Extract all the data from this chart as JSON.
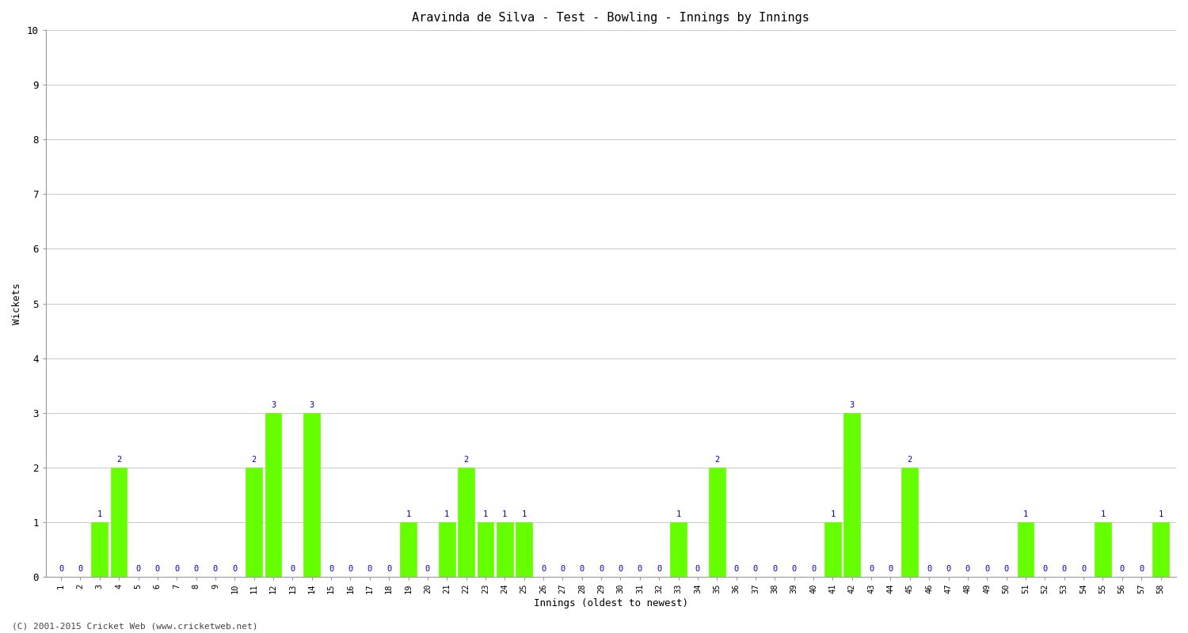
{
  "title": "Aravinda de Silva - Test - Bowling - Innings by Innings",
  "xlabel": "Innings (oldest to newest)",
  "ylabel": "Wickets",
  "background_color": "#ffffff",
  "bar_color": "#66ff00",
  "label_color": "#0000cc",
  "ylim": [
    0,
    10
  ],
  "yticks": [
    0,
    1,
    2,
    3,
    4,
    5,
    6,
    7,
    8,
    9,
    10
  ],
  "innings": [
    1,
    2,
    3,
    4,
    5,
    6,
    7,
    8,
    9,
    10,
    11,
    12,
    13,
    14,
    15,
    16,
    17,
    18,
    19,
    20,
    21,
    22,
    23,
    24,
    25,
    26,
    27,
    28,
    29,
    30,
    31,
    32,
    33,
    34,
    35,
    36,
    37,
    38,
    39,
    40,
    41,
    42,
    43,
    44,
    45,
    46,
    47,
    48,
    49,
    50,
    51,
    52,
    53,
    54,
    55,
    56,
    57,
    58
  ],
  "wickets": [
    0,
    0,
    1,
    2,
    0,
    0,
    0,
    0,
    0,
    0,
    2,
    3,
    0,
    3,
    0,
    0,
    0,
    0,
    1,
    0,
    1,
    2,
    1,
    1,
    1,
    0,
    0,
    0,
    0,
    0,
    0,
    0,
    1,
    0,
    2,
    0,
    0,
    0,
    0,
    0,
    1,
    3,
    0,
    0,
    2,
    0,
    0,
    0,
    0,
    0,
    1,
    0,
    0,
    0,
    1,
    0,
    0,
    1
  ],
  "footer": "(C) 2001-2015 Cricket Web (www.cricketweb.net)"
}
